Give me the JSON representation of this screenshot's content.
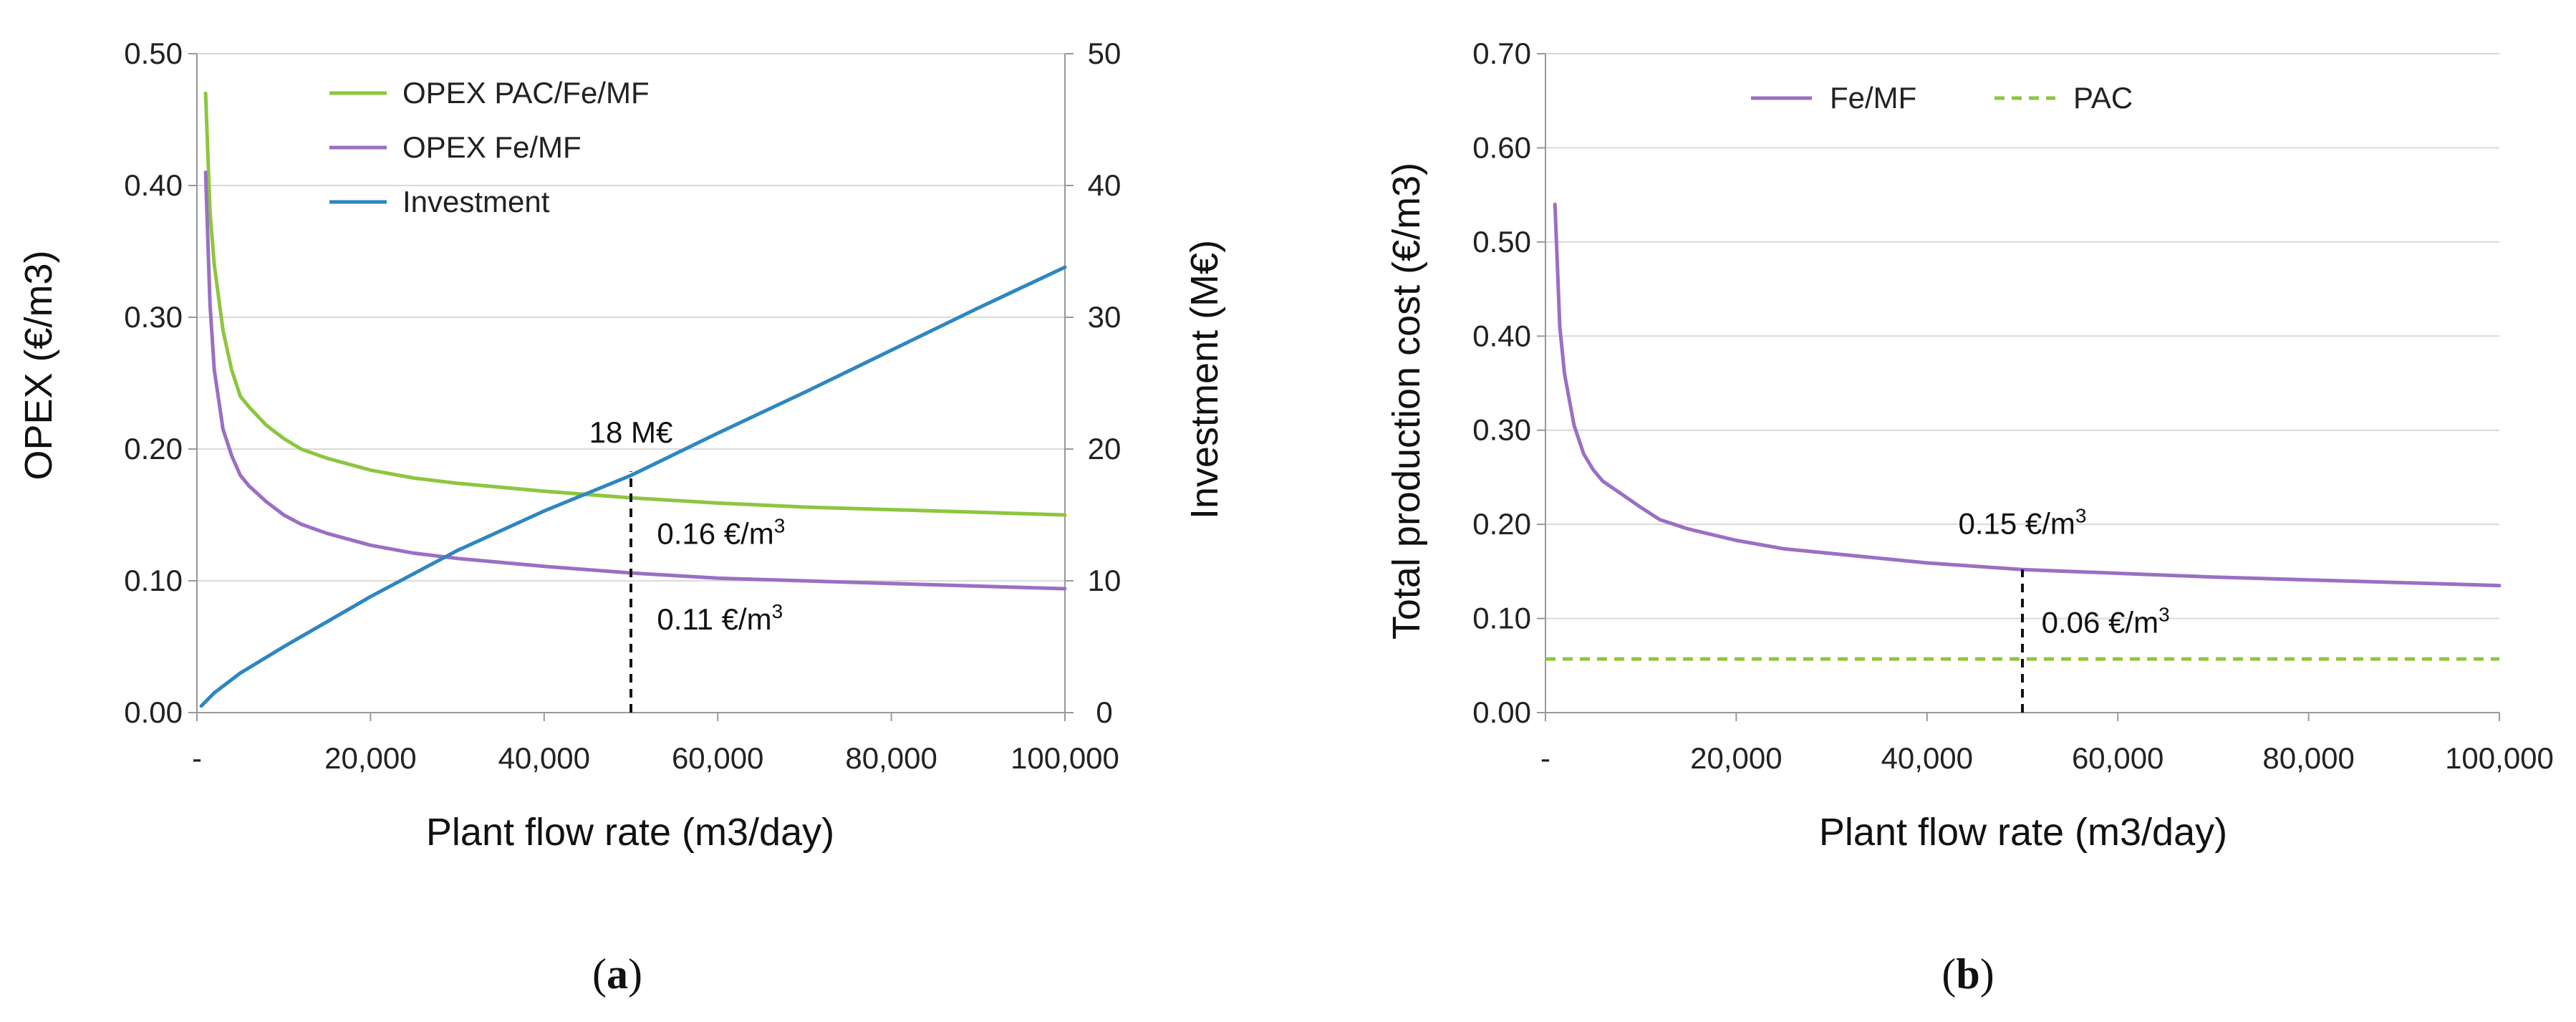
{
  "colors": {
    "green": "#8dc63f",
    "purple": "#9b6fc3",
    "blue": "#2e86c1",
    "grid": "#d9d9d9",
    "axis": "#999999"
  },
  "chart_data": [
    {
      "id": "a",
      "type": "line",
      "sub_label_open": "(",
      "sub_label_letter": "a",
      "sub_label_close": ")",
      "xlabel": "Plant flow rate (m3/day)",
      "ylabel": "OPEX (€/m3)",
      "y2label": "Investment (M€)",
      "xlim": [
        0,
        100000
      ],
      "ylim": [
        0,
        0.5
      ],
      "y2lim": [
        0,
        50
      ],
      "x_ticks": [
        0,
        20000,
        40000,
        60000,
        80000,
        100000
      ],
      "x_tick_labels": [
        "-",
        "20,000",
        "40,000",
        "60,000",
        "80,000",
        "100,000"
      ],
      "y_ticks": [
        0,
        0.1,
        0.2,
        0.3,
        0.4,
        0.5
      ],
      "y_tick_labels": [
        "0.00",
        "0.10",
        "0.20",
        "0.30",
        "0.40",
        "0.50"
      ],
      "y2_ticks": [
        0,
        10,
        20,
        30,
        40,
        50
      ],
      "y2_tick_labels": [
        "0",
        "10",
        "20",
        "30",
        "40",
        "50"
      ],
      "grid": "horizontal",
      "legend_position": "top-left",
      "series": [
        {
          "name": "OPEX PAC/Fe/MF",
          "axis": "y",
          "color": "green",
          "dash": false,
          "x": [
            1000,
            1500,
            2000,
            3000,
            4000,
            5000,
            6000,
            8000,
            10000,
            12000,
            15000,
            20000,
            25000,
            30000,
            40000,
            50000,
            60000,
            70000,
            80000,
            90000,
            100000
          ],
          "y": [
            0.47,
            0.38,
            0.34,
            0.29,
            0.26,
            0.24,
            0.232,
            0.218,
            0.208,
            0.2,
            0.193,
            0.184,
            0.178,
            0.174,
            0.168,
            0.163,
            0.159,
            0.156,
            0.154,
            0.152,
            0.15
          ]
        },
        {
          "name": "OPEX Fe/MF",
          "axis": "y",
          "color": "purple",
          "dash": false,
          "x": [
            1000,
            1500,
            2000,
            3000,
            4000,
            5000,
            6000,
            8000,
            10000,
            12000,
            15000,
            20000,
            25000,
            30000,
            40000,
            50000,
            60000,
            70000,
            80000,
            90000,
            100000
          ],
          "y": [
            0.41,
            0.31,
            0.26,
            0.215,
            0.195,
            0.18,
            0.172,
            0.16,
            0.15,
            0.143,
            0.136,
            0.127,
            0.121,
            0.117,
            0.111,
            0.106,
            0.102,
            0.1,
            0.098,
            0.096,
            0.094
          ]
        },
        {
          "name": "Investment",
          "axis": "y2",
          "color": "blue",
          "dash": false,
          "x": [
            500,
            2000,
            5000,
            10000,
            20000,
            30000,
            40000,
            50000,
            60000,
            70000,
            80000,
            90000,
            100000
          ],
          "y": [
            0.5,
            1.5,
            3.0,
            5.0,
            8.8,
            12.3,
            15.3,
            18.0,
            21.2,
            24.3,
            27.5,
            30.7,
            33.8
          ]
        }
      ],
      "markers": [
        {
          "x": 50000,
          "y_from": 0,
          "y_to": 0.183
        }
      ],
      "annotations": [
        {
          "text": "18 M€",
          "sup": "",
          "x": 50000,
          "y": 0.205,
          "anchor": "middle"
        },
        {
          "text": "0.16 €/m",
          "sup": "3",
          "x": 53000,
          "y": 0.128,
          "anchor": "start"
        },
        {
          "text": "0.11 €/m",
          "sup": "3",
          "x": 53000,
          "y": 0.063,
          "anchor": "start"
        }
      ]
    },
    {
      "id": "b",
      "type": "line",
      "sub_label_open": "(",
      "sub_label_letter": "b",
      "sub_label_close": ")",
      "xlabel": "Plant flow rate (m3/day)",
      "ylabel": "Total production cost (€/m3)",
      "xlim": [
        0,
        100000
      ],
      "ylim": [
        0,
        0.7
      ],
      "x_ticks": [
        0,
        20000,
        40000,
        60000,
        80000,
        100000
      ],
      "x_tick_labels": [
        "-",
        "20,000",
        "40,000",
        "60,000",
        "80,000",
        "100,000"
      ],
      "y_ticks": [
        0,
        0.1,
        0.2,
        0.3,
        0.4,
        0.5,
        0.6,
        0.7
      ],
      "y_tick_labels": [
        "0.00",
        "0.10",
        "0.20",
        "0.30",
        "0.40",
        "0.50",
        "0.60",
        "0.70"
      ],
      "grid": "horizontal",
      "legend_position": "top-center",
      "series": [
        {
          "name": "Fe/MF",
          "axis": "y",
          "color": "purple",
          "dash": false,
          "x": [
            1000,
            1500,
            2000,
            3000,
            4000,
            5000,
            6000,
            8000,
            10000,
            12000,
            15000,
            20000,
            25000,
            30000,
            40000,
            50000,
            60000,
            70000,
            80000,
            90000,
            100000
          ],
          "y": [
            0.54,
            0.41,
            0.36,
            0.305,
            0.275,
            0.258,
            0.246,
            0.232,
            0.218,
            0.205,
            0.195,
            0.183,
            0.174,
            0.169,
            0.159,
            0.152,
            0.148,
            0.144,
            0.141,
            0.138,
            0.135
          ]
        },
        {
          "name": "PAC",
          "axis": "y",
          "color": "green",
          "dash": true,
          "x": [
            0,
            100000
          ],
          "y": [
            0.057,
            0.057
          ]
        }
      ],
      "markers": [
        {
          "x": 50000,
          "y_from": 0,
          "y_to": 0.152
        }
      ],
      "annotations": [
        {
          "text": "0.15 €/m",
          "sup": "3",
          "x": 50000,
          "y": 0.19,
          "anchor": "middle"
        },
        {
          "text": "0.06 €/m",
          "sup": "3",
          "x": 52000,
          "y": 0.085,
          "anchor": "start"
        }
      ]
    }
  ]
}
